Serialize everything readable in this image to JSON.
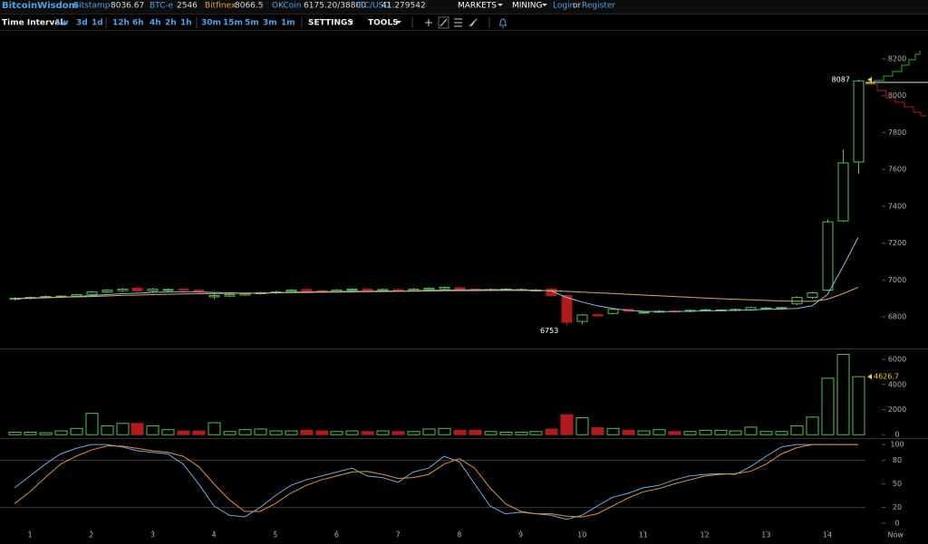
{
  "header": {
    "logo": "BitcoinWisdom",
    "markets": [
      {
        "name": "Bitstamp",
        "price": "8036.67"
      },
      {
        "name": "BTC-e",
        "price": "2546"
      },
      {
        "name": "Bitfinex",
        "price": "8066.5"
      },
      {
        "name": "OKCoin",
        "price": "6175.20/38800"
      },
      {
        "name": "LTC/USD",
        "price": "41.279542"
      }
    ],
    "menu": [
      "MARKETS",
      "MINING"
    ],
    "login": "Login",
    "or": "or",
    "register": "Register"
  },
  "toolbar": {
    "label": "Time Interval:",
    "intervals": [
      "1w",
      "3d",
      "1d",
      "12h",
      "6h",
      "4h",
      "2h",
      "1h",
      "30m",
      "15m",
      "5m",
      "3m",
      "1m"
    ],
    "settings": "SETTINGS",
    "tools": "TOOLS"
  },
  "chart_data": [
    {
      "type": "candlestick",
      "up_color": "#4fc44f",
      "down_color": "#b01c1c",
      "x": [
        0.75,
        1,
        1.25,
        1.5,
        1.75,
        2,
        2.25,
        2.5,
        2.75,
        3,
        3.25,
        3.5,
        3.75,
        4,
        4.25,
        4.5,
        4.75,
        5,
        5.25,
        5.5,
        5.75,
        6,
        6.25,
        6.5,
        6.75,
        7,
        7.25,
        7.5,
        7.75,
        8,
        8.25,
        8.5,
        8.75,
        9,
        9.25,
        9.5,
        9.75,
        10,
        10.25,
        10.5,
        10.75,
        11,
        11.25,
        11.5,
        11.75,
        12,
        12.25,
        12.5,
        12.75,
        13,
        13.25,
        13.5,
        13.75,
        14,
        14.25,
        14.5
      ],
      "open": [
        6895,
        6900,
        6905,
        6908,
        6912,
        6922,
        6935,
        6942,
        6955,
        6940,
        6944,
        6950,
        6945,
        6908,
        6912,
        6918,
        6926,
        6930,
        6938,
        6948,
        6942,
        6938,
        6944,
        6950,
        6942,
        6948,
        6943,
        6948,
        6952,
        6958,
        6950,
        6944,
        6946,
        6945,
        6942,
        6950,
        6915,
        6775,
        6812,
        6818,
        6840,
        6822,
        6826,
        6832,
        6830,
        6834,
        6834,
        6836,
        6838,
        6845,
        6846,
        6870,
        6905,
        6945,
        7320,
        7640
      ],
      "high": [
        6906,
        6911,
        6916,
        6918,
        6926,
        6941,
        6951,
        6956,
        6961,
        6956,
        6954,
        6956,
        6951,
        6930,
        6926,
        6931,
        6936,
        6941,
        6951,
        6954,
        6948,
        6951,
        6956,
        6956,
        6954,
        6954,
        6956,
        6961,
        6966,
        6964,
        6956,
        6954,
        6956,
        6954,
        6951,
        6956,
        6921,
        6816,
        6818,
        6846,
        6846,
        6831,
        6836,
        6838,
        6841,
        6844,
        6843,
        6846,
        6856,
        6854,
        6856,
        6911,
        6936,
        7330,
        7707,
        8087
      ],
      "low": [
        6889,
        6894,
        6899,
        6902,
        6906,
        6916,
        6929,
        6936,
        6934,
        6934,
        6938,
        6939,
        6929,
        6895,
        6906,
        6912,
        6920,
        6924,
        6932,
        6934,
        6929,
        6932,
        6938,
        6934,
        6936,
        6936,
        6937,
        6942,
        6946,
        6944,
        6939,
        6938,
        6940,
        6939,
        6936,
        6909,
        6753,
        6760,
        6799,
        6812,
        6824,
        6816,
        6820,
        6822,
        6824,
        6828,
        6828,
        6830,
        6832,
        6839,
        6840,
        6864,
        6899,
        6939,
        7314,
        7575
      ],
      "close": [
        6900,
        6905,
        6910,
        6912,
        6920,
        6935,
        6945,
        6950,
        6940,
        6950,
        6948,
        6945,
        6935,
        6915,
        6920,
        6925,
        6930,
        6935,
        6945,
        6940,
        6935,
        6945,
        6950,
        6940,
        6948,
        6942,
        6950,
        6955,
        6960,
        6950,
        6945,
        6948,
        6950,
        6948,
        6945,
        6915,
        6770,
        6810,
        6805,
        6840,
        6830,
        6825,
        6830,
        6828,
        6835,
        6838,
        6837,
        6840,
        6850,
        6848,
        6850,
        6905,
        6930,
        7315,
        7635,
        8080
      ],
      "lines": [
        {
          "color": "#8fb8dc",
          "values": [
            6898,
            6900,
            6903,
            6906,
            6910,
            6915,
            6920,
            6925,
            6928,
            6932,
            6935,
            6936,
            6935,
            6932,
            6930,
            6928,
            6928,
            6930,
            6933,
            6935,
            6936,
            6937,
            6938,
            6938,
            6940,
            6940,
            6941,
            6943,
            6945,
            6946,
            6946,
            6947,
            6947,
            6946,
            6945,
            6940,
            6905,
            6880,
            6860,
            6845,
            6835,
            6830,
            6828,
            6828,
            6830,
            6832,
            6834,
            6835,
            6837,
            6840,
            6842,
            6845,
            6860,
            6920,
            7070,
            7230
          ]
        },
        {
          "color": "#d9a866",
          "values": [
            6900,
            6902,
            6904,
            6906,
            6908,
            6910,
            6913,
            6916,
            6918,
            6920,
            6922,
            6924,
            6925,
            6926,
            6927,
            6928,
            6929,
            6930,
            6931,
            6932,
            6933,
            6934,
            6935,
            6936,
            6937,
            6938,
            6939,
            6940,
            6941,
            6942,
            6942,
            6943,
            6943,
            6943,
            6943,
            6942,
            6938,
            6934,
            6930,
            6926,
            6922,
            6918,
            6914,
            6910,
            6906,
            6902,
            6898,
            6895,
            6892,
            6889,
            6886,
            6884,
            6884,
            6895,
            6925,
            6960
          ]
        }
      ],
      "annotations": [
        {
          "x": 9.75,
          "value": 6753
        },
        {
          "x": 14.5,
          "value": 8087
        }
      ],
      "xlim": [
        0.5126,
        14.62
      ],
      "ylim": [
        6628,
        8347
      ],
      "yticks": [
        6800,
        7000,
        7200,
        7400,
        7600,
        7800,
        8000,
        8200
      ]
    },
    {
      "type": "bar",
      "last_label_color": "#f2d600",
      "values": [
        200,
        200,
        150,
        300,
        500,
        1700,
        700,
        900,
        900,
        700,
        400,
        300,
        300,
        950,
        250,
        400,
        450,
        300,
        300,
        350,
        300,
        250,
        300,
        250,
        300,
        250,
        250,
        450,
        500,
        350,
        350,
        250,
        200,
        200,
        250,
        450,
        1600,
        1350,
        550,
        500,
        350,
        300,
        400,
        250,
        250,
        350,
        350,
        300,
        600,
        250,
        250,
        700,
        1400,
        4500,
        6400,
        4626.7
      ],
      "xlim": [
        0.5126,
        14.62
      ],
      "ylim": [
        -200,
        6800
      ],
      "yticks": [
        0,
        2000,
        4000,
        6000
      ]
    },
    {
      "type": "line",
      "series": [
        {
          "color": "#6fa8dc",
          "values": [
            45,
            60,
            75,
            88,
            95,
            100,
            100,
            97,
            92,
            90,
            88,
            75,
            50,
            22,
            10,
            8,
            20,
            35,
            48,
            55,
            60,
            65,
            70,
            60,
            58,
            52,
            65,
            70,
            85,
            78,
            50,
            22,
            12,
            14,
            12,
            10,
            5,
            10,
            22,
            33,
            38,
            45,
            48,
            55,
            60,
            62,
            63,
            62,
            72,
            85,
            97,
            100,
            100,
            100,
            100,
            100
          ]
        },
        {
          "color": "#e0913a",
          "values": [
            25,
            40,
            58,
            75,
            85,
            93,
            98,
            98,
            95,
            92,
            90,
            85,
            72,
            50,
            30,
            15,
            15,
            25,
            38,
            48,
            55,
            60,
            65,
            66,
            62,
            57,
            58,
            62,
            75,
            82,
            70,
            45,
            25,
            15,
            12,
            12,
            9,
            8,
            12,
            22,
            32,
            40,
            44,
            50,
            55,
            60,
            62,
            63,
            66,
            75,
            88,
            96,
            100,
            100,
            100,
            100
          ]
        }
      ],
      "levels": [
        20,
        80
      ],
      "xlim": [
        0.5126,
        14.62
      ],
      "ylim": [
        -8,
        107
      ],
      "yticks": [
        0,
        20,
        50,
        80,
        100
      ],
      "xticks": [
        1,
        2,
        3,
        4,
        5,
        6,
        7,
        8,
        9,
        10,
        11,
        12,
        13,
        14,
        {
          "value": 15.11,
          "label": "Now"
        }
      ]
    }
  ]
}
